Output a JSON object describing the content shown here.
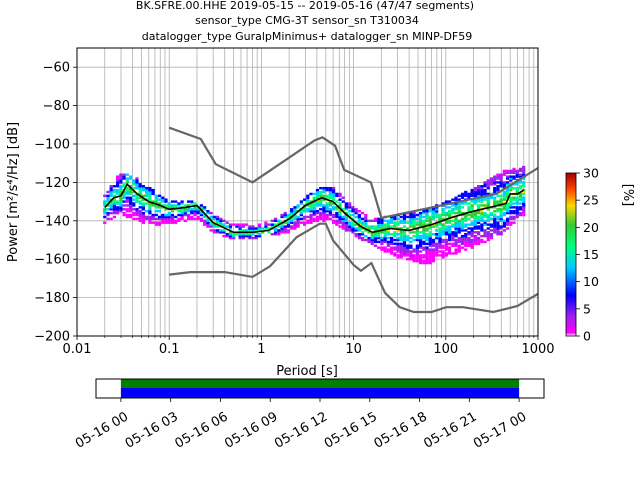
{
  "chart_data": {
    "type": "heatmap",
    "title_lines": [
      "BK.SFRE.00.HHE   2019-05-15 -- 2019-05-16  (47/47 segments)",
      "sensor_type CMG-3T sensor_sn T310034",
      "datalogger_type GuralpMinimus+ datalogger_sn MINP-DF59"
    ],
    "xlabel": "Period [s]",
    "ylabel": "Power [m²/s⁴/Hz] [dB]",
    "x_scale": "log",
    "xlim": [
      0.01,
      1000
    ],
    "ylim": [
      -200,
      -50
    ],
    "x_ticks": [
      {
        "value": 0.01,
        "label": "0.01"
      },
      {
        "value": 0.1,
        "label": "0.1"
      },
      {
        "value": 1,
        "label": "1"
      },
      {
        "value": 10,
        "label": "10"
      },
      {
        "value": 100,
        "label": "100"
      },
      {
        "value": 1000,
        "label": "1000"
      }
    ],
    "y_ticks": [
      -60,
      -80,
      -100,
      -120,
      -140,
      -160,
      -180,
      -200
    ],
    "grid": true,
    "colorbar": {
      "label": "[%]",
      "min": 0,
      "max": 30,
      "ticks": [
        0,
        5,
        10,
        15,
        20,
        25,
        30
      ]
    },
    "nhnm_curve": [
      [
        0.1,
        -91.5
      ],
      [
        0.22,
        -97.4
      ],
      [
        0.32,
        -110.5
      ],
      [
        0.8,
        -120
      ],
      [
        3.8,
        -98
      ],
      [
        4.6,
        -96.5
      ],
      [
        6.3,
        -101
      ],
      [
        7.9,
        -113.5
      ],
      [
        15.4,
        -120
      ],
      [
        20,
        -138.5
      ],
      [
        354,
        -126
      ],
      [
        1000,
        -112.5
      ]
    ],
    "nlnm_curve": [
      [
        0.1,
        -168
      ],
      [
        0.17,
        -166.7
      ],
      [
        0.4,
        -166.7
      ],
      [
        0.8,
        -169.2
      ],
      [
        1.24,
        -163.7
      ],
      [
        2.4,
        -148.6
      ],
      [
        4.3,
        -141.5
      ],
      [
        5,
        -141.5
      ],
      [
        6,
        -150.2
      ],
      [
        10,
        -163
      ],
      [
        12,
        -166
      ],
      [
        15.6,
        -162
      ],
      [
        21.9,
        -177.5
      ],
      [
        31.6,
        -185
      ],
      [
        45,
        -187.5
      ],
      [
        70,
        -187.5
      ],
      [
        101,
        -185
      ],
      [
        154,
        -185
      ],
      [
        328,
        -187.5
      ],
      [
        600,
        -184.4
      ],
      [
        1000,
        -178
      ]
    ],
    "mode_curve": [
      [
        0.02,
        -133
      ],
      [
        0.025,
        -128
      ],
      [
        0.03,
        -127
      ],
      [
        0.035,
        -121
      ],
      [
        0.045,
        -126
      ],
      [
        0.06,
        -130
      ],
      [
        0.08,
        -132
      ],
      [
        0.1,
        -134
      ],
      [
        0.15,
        -133
      ],
      [
        0.2,
        -132
      ],
      [
        0.3,
        -141
      ],
      [
        0.5,
        -146
      ],
      [
        0.8,
        -146
      ],
      [
        1.2,
        -145
      ],
      [
        2,
        -139
      ],
      [
        3,
        -132
      ],
      [
        4.5,
        -128
      ],
      [
        6,
        -130
      ],
      [
        8,
        -136
      ],
      [
        12,
        -143
      ],
      [
        16,
        -146
      ],
      [
        25,
        -144
      ],
      [
        40,
        -145
      ],
      [
        70,
        -142
      ],
      [
        120,
        -138
      ],
      [
        200,
        -135
      ],
      [
        300,
        -133
      ],
      [
        450,
        -131
      ],
      [
        500,
        -126
      ],
      [
        600,
        -126
      ],
      [
        700,
        -124
      ]
    ],
    "psd_cloud": [
      {
        "x": 0.02,
        "low": -141,
        "high": -127
      },
      {
        "x": 0.03,
        "low": -137,
        "high": -114
      },
      {
        "x": 0.045,
        "low": -140,
        "high": -118
      },
      {
        "x": 0.07,
        "low": -143,
        "high": -124
      },
      {
        "x": 0.1,
        "low": -142,
        "high": -130
      },
      {
        "x": 0.2,
        "low": -139,
        "high": -130
      },
      {
        "x": 0.3,
        "low": -146,
        "high": -136
      },
      {
        "x": 0.5,
        "low": -150,
        "high": -142
      },
      {
        "x": 1,
        "low": -149,
        "high": -142
      },
      {
        "x": 2,
        "low": -146,
        "high": -135
      },
      {
        "x": 4,
        "low": -140,
        "high": -123
      },
      {
        "x": 6,
        "low": -141,
        "high": -122
      },
      {
        "x": 10,
        "low": -148,
        "high": -133
      },
      {
        "x": 16,
        "low": -153,
        "high": -139
      },
      {
        "x": 30,
        "low": -159,
        "high": -137
      },
      {
        "x": 60,
        "low": -163,
        "high": -134
      },
      {
        "x": 100,
        "low": -159,
        "high": -130
      },
      {
        "x": 200,
        "low": -154,
        "high": -123
      },
      {
        "x": 400,
        "low": -147,
        "high": -114
      },
      {
        "x": 700,
        "low": -137,
        "high": -112
      }
    ]
  },
  "timeline": {
    "ticks": [
      "05-16 00",
      "05-16 03",
      "05-16 06",
      "05-16 09",
      "05-16 12",
      "05-16 15",
      "05-16 18",
      "05-16 21",
      "05-17 00"
    ],
    "start_hour": -1.5,
    "end_hour": 25.5,
    "coverage_start_hour": 0,
    "coverage_end_hour": 24,
    "colors": {
      "used": "#008000",
      "data": "#0000ff"
    }
  }
}
